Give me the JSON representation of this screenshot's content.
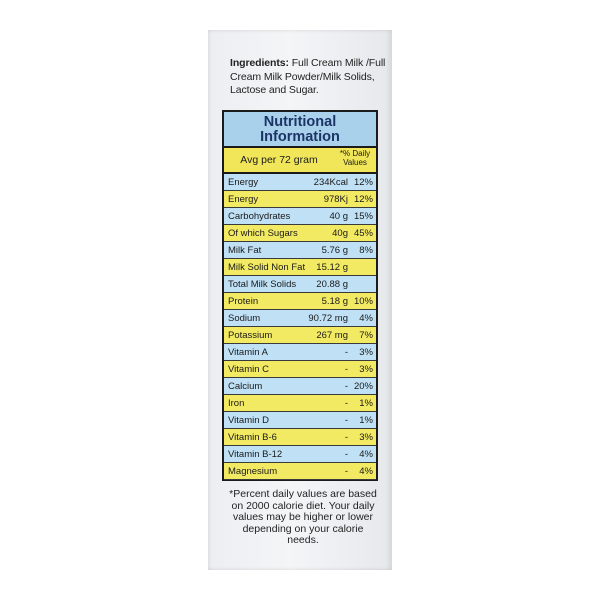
{
  "ingredients": {
    "label": "Ingredients:",
    "text": "Full Cream Milk /Full Cream Milk Powder/Milk Solids, Lactose and Sugar."
  },
  "nutrition": {
    "title_line1": "Nutritional",
    "title_line2": "Information",
    "header_left": "Avg per 72 gram",
    "header_right": "*% Daily Values",
    "rows": [
      {
        "name": "Energy",
        "amount": "234Kcal",
        "dv": "12%",
        "color": "blue"
      },
      {
        "name": "Energy",
        "amount": "978Kj",
        "dv": "12%",
        "color": "yellow"
      },
      {
        "name": "Carbohydrates",
        "amount": "40 g",
        "dv": "15%",
        "color": "blue"
      },
      {
        "name": "Of which Sugars",
        "amount": "40g",
        "dv": "45%",
        "color": "yellow"
      },
      {
        "name": "Milk Fat",
        "amount": "5.76 g",
        "dv": "8%",
        "color": "blue"
      },
      {
        "name": "Milk Solid Non Fat",
        "amount": "15.12 g",
        "dv": "",
        "color": "yellow"
      },
      {
        "name": "Total Milk Solids",
        "amount": "20.88 g",
        "dv": "",
        "color": "blue"
      },
      {
        "name": "Protein",
        "amount": "5.18 g",
        "dv": "10%",
        "color": "yellow"
      },
      {
        "name": "Sodium",
        "amount": "90.72 mg",
        "dv": "4%",
        "color": "blue"
      },
      {
        "name": "Potassium",
        "amount": "267 mg",
        "dv": "7%",
        "color": "yellow"
      },
      {
        "name": "Vitamin A",
        "amount": "-",
        "dv": "3%",
        "color": "blue"
      },
      {
        "name": "Vitamin C",
        "amount": "-",
        "dv": "3%",
        "color": "yellow"
      },
      {
        "name": "Calcium",
        "amount": "-",
        "dv": "20%",
        "color": "blue"
      },
      {
        "name": "Iron",
        "amount": "-",
        "dv": "1%",
        "color": "yellow"
      },
      {
        "name": "Vitamin D",
        "amount": "-",
        "dv": "1%",
        "color": "blue"
      },
      {
        "name": "Vitamin B-6",
        "amount": "-",
        "dv": "3%",
        "color": "yellow"
      },
      {
        "name": "Vitamin B-12",
        "amount": "-",
        "dv": "4%",
        "color": "blue"
      },
      {
        "name": "Magnesium",
        "amount": "-",
        "dv": "4%",
        "color": "yellow"
      }
    ]
  },
  "footnote": "*Percent daily values are based on 2000 calorie diet. Your daily values may be higher or lower depending on your calorie needs.",
  "colors": {
    "blue_row": "#bfe0f5",
    "yellow_row": "#f3ea63",
    "title_bg": "#a9d1ec",
    "title_text": "#1c3566"
  }
}
